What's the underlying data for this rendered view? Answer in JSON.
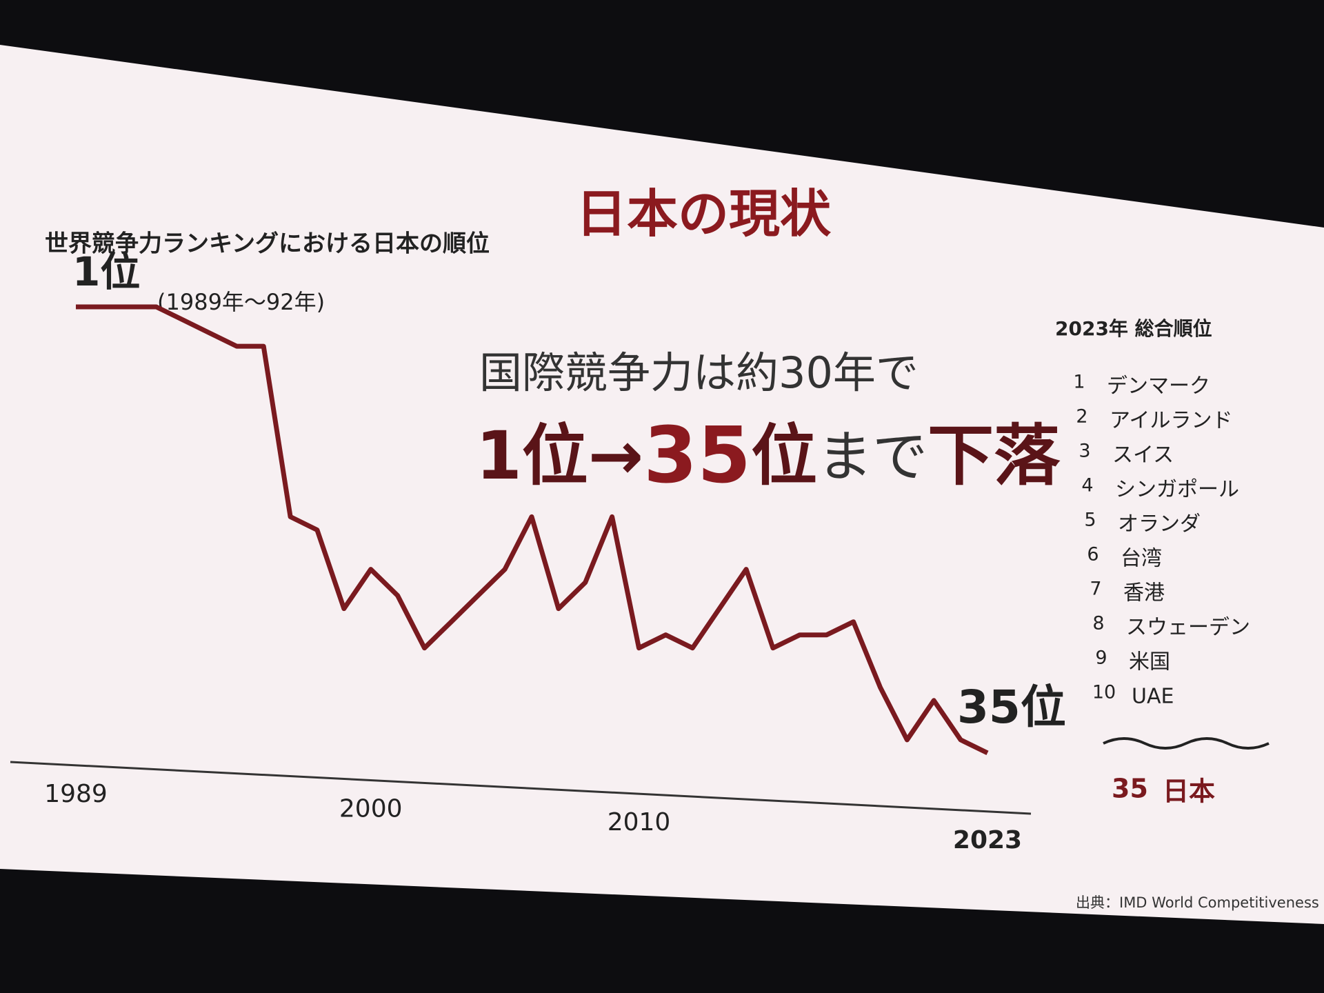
{
  "chart_data": {
    "type": "line",
    "slide_title": "日本の現状",
    "title": "世界競争力ランキングにおける日本の順位",
    "start_label": "1位",
    "start_note": "(1989年～92年)",
    "end_label": "35位",
    "headline": "国際競争力は約30年で",
    "headline_parts": [
      "1位→",
      "35",
      "位",
      "まで",
      "下落"
    ],
    "x": [
      1989,
      1990,
      1991,
      1992,
      1993,
      1994,
      1995,
      1996,
      1997,
      1998,
      1999,
      2000,
      2001,
      2002,
      2003,
      2004,
      2005,
      2006,
      2007,
      2008,
      2009,
      2010,
      2011,
      2012,
      2013,
      2014,
      2015,
      2016,
      2017,
      2018,
      2019,
      2020,
      2021,
      2022,
      2023
    ],
    "values": [
      1,
      1,
      1,
      1,
      2,
      3,
      4,
      4,
      17,
      18,
      24,
      21,
      23,
      27,
      25,
      23,
      21,
      17,
      24,
      22,
      17,
      27,
      26,
      27,
      24,
      21,
      27,
      26,
      26,
      25,
      30,
      34,
      31,
      34,
      35
    ],
    "color": "#7a1a1f",
    "xlim": [
      1989,
      2023
    ],
    "xticks": [
      1989,
      2000,
      2010,
      2023
    ],
    "ylim": [
      37,
      1
    ],
    "ranking": {
      "title": "2023年 総合順位",
      "ranks": [
        1,
        2,
        3,
        4,
        5,
        6,
        7,
        8,
        9,
        10
      ],
      "names": [
        "デンマーク",
        "アイルランド",
        "スイス",
        "シンガポール",
        "オランダ",
        "台湾",
        "香港",
        "スウェーデン",
        "米国",
        "UAE"
      ],
      "japan_rank": 35,
      "japan_name": "日本"
    },
    "source": "出典：IMD World Competitiveness Ra"
  }
}
